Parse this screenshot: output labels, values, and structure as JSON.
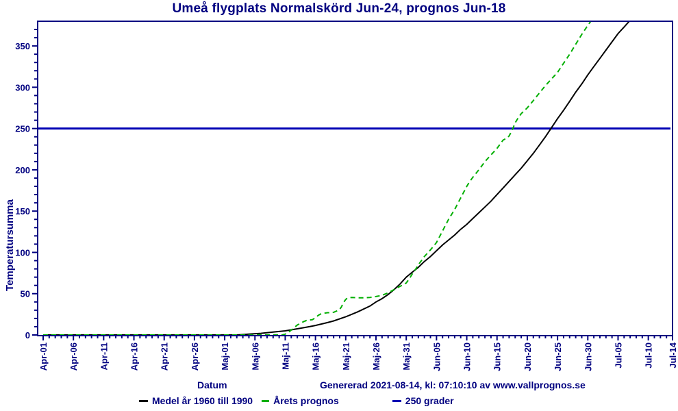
{
  "colors": {
    "text": "#000080",
    "axis": "#000080",
    "mean_line": "#000000",
    "forecast_line": "#00AF00",
    "reference_line": "#0000B4",
    "background": "#FFFFFF"
  },
  "footer": {
    "generated": "Genererad 2021-08-14, kl: 07:10:10 av www.vallprognos.se"
  },
  "chart_data": {
    "type": "line",
    "title": "Umeå flygplats Normalskörd Jun-24, prognos Jun-18",
    "xlabel": "Datum",
    "ylabel": "Temperatursumma",
    "x_unit_days_since": "Apr-01",
    "xlim_days": [
      0,
      104
    ],
    "ylim": [
      0,
      380
    ],
    "grid": false,
    "legend_position": "bottom",
    "y_ticks": [
      0,
      50,
      100,
      150,
      200,
      250,
      300,
      350
    ],
    "y_minor_step": 10,
    "x_minor_step_days": 1,
    "x_ticks": [
      {
        "label": "Apr-01",
        "day": 0
      },
      {
        "label": "Apr-06",
        "day": 5
      },
      {
        "label": "Apr-11",
        "day": 10
      },
      {
        "label": "Apr-16",
        "day": 15
      },
      {
        "label": "Apr-21",
        "day": 20
      },
      {
        "label": "Apr-26",
        "day": 25
      },
      {
        "label": "Maj-01",
        "day": 30
      },
      {
        "label": "Maj-06",
        "day": 35
      },
      {
        "label": "Maj-11",
        "day": 40
      },
      {
        "label": "Maj-16",
        "day": 45
      },
      {
        "label": "Maj-21",
        "day": 50
      },
      {
        "label": "Maj-26",
        "day": 55
      },
      {
        "label": "Maj-31",
        "day": 60
      },
      {
        "label": "Jun-05",
        "day": 65
      },
      {
        "label": "Jun-10",
        "day": 70
      },
      {
        "label": "Jun-15",
        "day": 75
      },
      {
        "label": "Jun-20",
        "day": 80
      },
      {
        "label": "Jun-25",
        "day": 85
      },
      {
        "label": "Jun-30",
        "day": 90
      },
      {
        "label": "Jul-05",
        "day": 95
      },
      {
        "label": "Jul-10",
        "day": 100
      },
      {
        "label": "Jul-14",
        "day": 104
      }
    ],
    "reference_line": {
      "label": "250 grader",
      "value": 250,
      "color": "#0000B4"
    },
    "series": [
      {
        "name": "Medel år 1960 till 1990",
        "color": "#000000",
        "style": "solid",
        "points": [
          [
            0,
            0
          ],
          [
            5,
            0
          ],
          [
            10,
            0
          ],
          [
            15,
            0
          ],
          [
            20,
            0
          ],
          [
            25,
            0
          ],
          [
            30,
            0
          ],
          [
            32,
            0
          ],
          [
            34,
            1
          ],
          [
            36,
            2
          ],
          [
            38,
            3.5
          ],
          [
            40,
            5
          ],
          [
            42,
            7.5
          ],
          [
            44,
            10
          ],
          [
            45,
            11.5
          ],
          [
            47,
            15
          ],
          [
            48,
            17
          ],
          [
            50,
            22
          ],
          [
            52,
            28
          ],
          [
            54,
            35
          ],
          [
            55,
            40
          ],
          [
            56,
            44
          ],
          [
            57,
            49
          ],
          [
            58,
            55
          ],
          [
            59,
            62
          ],
          [
            60,
            70
          ],
          [
            61,
            76
          ],
          [
            62,
            82
          ],
          [
            63,
            89
          ],
          [
            64,
            95
          ],
          [
            65,
            102
          ],
          [
            66,
            109
          ],
          [
            67,
            115
          ],
          [
            68,
            121
          ],
          [
            69,
            128
          ],
          [
            70,
            134
          ],
          [
            71,
            141
          ],
          [
            72,
            148
          ],
          [
            73,
            155
          ],
          [
            74,
            162
          ],
          [
            75,
            170
          ],
          [
            76,
            178
          ],
          [
            77,
            186
          ],
          [
            78,
            194
          ],
          [
            79,
            202
          ],
          [
            80,
            211
          ],
          [
            81,
            220
          ],
          [
            82,
            230
          ],
          [
            83,
            240
          ],
          [
            84,
            251
          ],
          [
            85,
            262
          ],
          [
            86,
            272
          ],
          [
            87,
            283
          ],
          [
            88,
            294
          ],
          [
            89,
            304
          ],
          [
            90,
            315
          ],
          [
            91,
            325
          ],
          [
            92,
            335
          ],
          [
            93,
            345
          ],
          [
            94,
            355
          ],
          [
            95,
            365
          ],
          [
            96,
            373
          ],
          [
            97,
            381
          ]
        ]
      },
      {
        "name": "Årets prognos",
        "color": "#00AF00",
        "style": "dashed",
        "points": [
          [
            0,
            0
          ],
          [
            5,
            0
          ],
          [
            10,
            0
          ],
          [
            15,
            0
          ],
          [
            20,
            0
          ],
          [
            25,
            0
          ],
          [
            30,
            0
          ],
          [
            35,
            0
          ],
          [
            38,
            0
          ],
          [
            39.5,
            0
          ],
          [
            40,
            1
          ],
          [
            40.5,
            3
          ],
          [
            41,
            6
          ],
          [
            41.5,
            9
          ],
          [
            42,
            12
          ],
          [
            42.5,
            14
          ],
          [
            43,
            16
          ],
          [
            43.5,
            17.5
          ],
          [
            44,
            18
          ],
          [
            44.5,
            18.5
          ],
          [
            45,
            21
          ],
          [
            45.5,
            24
          ],
          [
            46,
            26
          ],
          [
            46.5,
            26.5
          ],
          [
            47,
            27
          ],
          [
            47.5,
            27
          ],
          [
            48,
            27.5
          ],
          [
            48.5,
            29
          ],
          [
            49,
            31
          ],
          [
            49.3,
            34
          ],
          [
            49.6,
            39
          ],
          [
            50,
            43
          ],
          [
            50.3,
            45
          ],
          [
            51,
            45.5
          ],
          [
            52,
            45
          ],
          [
            53,
            45
          ],
          [
            54,
            45.5
          ],
          [
            55,
            46.5
          ],
          [
            56,
            48
          ],
          [
            57,
            51
          ],
          [
            58,
            55
          ],
          [
            59,
            59
          ],
          [
            60,
            63
          ],
          [
            60.5,
            68
          ],
          [
            61,
            74
          ],
          [
            61.5,
            79
          ],
          [
            62,
            85
          ],
          [
            63,
            95
          ],
          [
            64,
            103
          ],
          [
            65,
            112
          ],
          [
            66,
            126
          ],
          [
            67,
            140
          ],
          [
            68,
            152
          ],
          [
            69,
            166
          ],
          [
            70,
            180
          ],
          [
            70.5,
            186
          ],
          [
            71,
            191
          ],
          [
            72,
            200
          ],
          [
            73,
            210
          ],
          [
            74,
            218
          ],
          [
            75,
            226
          ],
          [
            75.5,
            231
          ],
          [
            76,
            236
          ],
          [
            76.5,
            238
          ],
          [
            77,
            241
          ],
          [
            77.5,
            248
          ],
          [
            78,
            257
          ],
          [
            78.5,
            263
          ],
          [
            79,
            268
          ],
          [
            80,
            275
          ],
          [
            81,
            284
          ],
          [
            82,
            293
          ],
          [
            83,
            302
          ],
          [
            84,
            310
          ],
          [
            85,
            318
          ],
          [
            86,
            329
          ],
          [
            87,
            340
          ],
          [
            88,
            352
          ],
          [
            89,
            364
          ],
          [
            90,
            375
          ],
          [
            90.6,
            381
          ]
        ]
      }
    ]
  }
}
